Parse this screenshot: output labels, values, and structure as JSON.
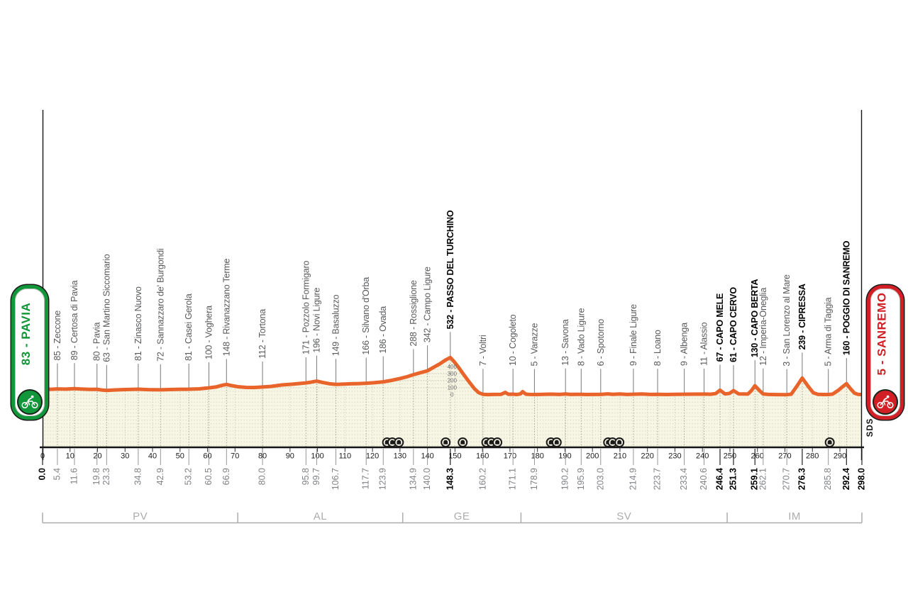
{
  "badges": {
    "start": {
      "label": "83 - PAVIA",
      "color": "#12963A"
    },
    "finish": {
      "label": "5 - SANREMO",
      "color": "#D21F26"
    }
  },
  "sds_logo": "SDS",
  "colors": {
    "profile_line": "#E8642B",
    "area_fill": "#F7F6E4",
    "area_dots": "#C8C8B3",
    "label_gray": "#58595B",
    "km_value_gray": "#808285",
    "province_gray": "#ACACAC",
    "axis_black": "#141414",
    "bold_black": "#000000"
  },
  "chart_data": {
    "type": "area",
    "x_unit": "km",
    "x_range": [
      0,
      298
    ],
    "x_ticks": [
      0,
      10,
      20,
      30,
      40,
      50,
      60,
      70,
      80,
      90,
      100,
      110,
      120,
      130,
      140,
      150,
      160,
      170,
      180,
      190,
      200,
      210,
      220,
      230,
      240,
      250,
      260,
      270,
      280,
      290
    ],
    "elevation_axis": {
      "at_km": 148.3,
      "labels": [
        400,
        300,
        200,
        100,
        0
      ]
    },
    "start": {
      "km": 0.0,
      "bold": true
    },
    "finish": {
      "km": 298.0,
      "bold": true
    },
    "towns": [
      {
        "km": 5.4,
        "elevation": 85,
        "name": "Zeccone",
        "bold": false
      },
      {
        "km": 11.6,
        "elevation": 89,
        "name": "Certosa di Pavia",
        "bold": false
      },
      {
        "km": 19.8,
        "elevation": 80,
        "name": "Pavia",
        "bold": false
      },
      {
        "km": 23.3,
        "elevation": 63,
        "name": "San Martino Siccomario",
        "bold": false
      },
      {
        "km": 34.8,
        "elevation": 81,
        "name": "Zinasco Nuovo",
        "bold": false
      },
      {
        "km": 42.9,
        "elevation": 72,
        "name": "Sannazzaro de' Burgondi",
        "bold": false
      },
      {
        "km": 53.2,
        "elevation": 81,
        "name": "Casei Gerola",
        "bold": false
      },
      {
        "km": 60.5,
        "elevation": 100,
        "name": "Voghera",
        "bold": false
      },
      {
        "km": 66.9,
        "elevation": 148,
        "name": "Rivanazzano Terme",
        "bold": false
      },
      {
        "km": 80.0,
        "elevation": 112,
        "name": "Tortona",
        "bold": false
      },
      {
        "km": 95.8,
        "elevation": 171,
        "name": "Pozzolo Formigaro",
        "bold": false
      },
      {
        "km": 99.7,
        "elevation": 196,
        "name": "Novi Ligure",
        "bold": false
      },
      {
        "km": 106.7,
        "elevation": 149,
        "name": "Basaluzzo",
        "bold": false
      },
      {
        "km": 117.7,
        "elevation": 166,
        "name": "Silvano d'Orba",
        "bold": false
      },
      {
        "km": 123.9,
        "elevation": 186,
        "name": "Ovada",
        "bold": false
      },
      {
        "km": 134.9,
        "elevation": 288,
        "name": "Rossiglione",
        "bold": false
      },
      {
        "km": 140.0,
        "elevation": 342,
        "name": "Campo Ligure",
        "bold": false
      },
      {
        "km": 148.3,
        "elevation": 532,
        "name": "PASSO DEL TURCHINO",
        "bold": true
      },
      {
        "km": 160.2,
        "elevation": 7,
        "name": "Voltri",
        "bold": false
      },
      {
        "km": 171.1,
        "elevation": 10,
        "name": "Cogoleto",
        "bold": false
      },
      {
        "km": 178.9,
        "elevation": 5,
        "name": "Varazze",
        "bold": false
      },
      {
        "km": 190.2,
        "elevation": 13,
        "name": "Savona",
        "bold": false
      },
      {
        "km": 195.9,
        "elevation": 8,
        "name": "Vado Ligure",
        "bold": false
      },
      {
        "km": 203.0,
        "elevation": 6,
        "name": "Spotorno",
        "bold": false
      },
      {
        "km": 214.9,
        "elevation": 9,
        "name": "Finale Ligure",
        "bold": false
      },
      {
        "km": 223.7,
        "elevation": 8,
        "name": "Loano",
        "bold": false
      },
      {
        "km": 233.4,
        "elevation": 9,
        "name": "Albenga",
        "bold": false
      },
      {
        "km": 240.6,
        "elevation": 11,
        "name": "Alassio",
        "bold": false
      },
      {
        "km": 246.4,
        "elevation": 67,
        "name": "CAPO MELE",
        "bold": true
      },
      {
        "km": 251.3,
        "elevation": 61,
        "name": "CAPO CERVO",
        "bold": true
      },
      {
        "km": 259.1,
        "elevation": 130,
        "name": "CAPO BERTA",
        "bold": true
      },
      {
        "km": 262.1,
        "elevation": 12,
        "name": "Imperia-Oneglia",
        "bold": false
      },
      {
        "km": 270.7,
        "elevation": 3,
        "name": "San Lorenzo al Mare",
        "bold": false
      },
      {
        "km": 276.3,
        "elevation": 239,
        "name": "CIPRESSA",
        "bold": true
      },
      {
        "km": 285.8,
        "elevation": 5,
        "name": "Arma di Taggia",
        "bold": false
      },
      {
        "km": 292.4,
        "elevation": 160,
        "name": "POGGIO DI SANREMO",
        "bold": true
      }
    ],
    "provinces": [
      {
        "code": "PV",
        "from_km": 0,
        "to_km": 71
      },
      {
        "code": "AL",
        "from_km": 71,
        "to_km": 131
      },
      {
        "code": "GE",
        "from_km": 131,
        "to_km": 174
      },
      {
        "code": "SV",
        "from_km": 174,
        "to_km": 249
      },
      {
        "code": "IM",
        "from_km": 249,
        "to_km": 298
      }
    ],
    "tunnel_groups": [
      [
        125.3,
        127.2,
        129.6
      ],
      [
        146.6
      ],
      [
        152.8
      ],
      [
        161.4,
        163.2,
        165.4
      ],
      [
        184.9,
        187.0
      ],
      [
        205.7,
        207.3,
        209.8
      ],
      [
        286.3
      ]
    ],
    "profile_points": [
      [
        0,
        83
      ],
      [
        3,
        80
      ],
      [
        5.4,
        85
      ],
      [
        8.5,
        82
      ],
      [
        11.6,
        89
      ],
      [
        14,
        84
      ],
      [
        17,
        78
      ],
      [
        19.8,
        80
      ],
      [
        21.5,
        70
      ],
      [
        23.3,
        63
      ],
      [
        26,
        70
      ],
      [
        30,
        76
      ],
      [
        34.8,
        81
      ],
      [
        38.5,
        75
      ],
      [
        42.9,
        72
      ],
      [
        46,
        76
      ],
      [
        50,
        80
      ],
      [
        53.2,
        81
      ],
      [
        57,
        86
      ],
      [
        60.5,
        100
      ],
      [
        63,
        112
      ],
      [
        65.5,
        138
      ],
      [
        66.9,
        148
      ],
      [
        68.5,
        134
      ],
      [
        71,
        116
      ],
      [
        74,
        106
      ],
      [
        77,
        105
      ],
      [
        80,
        112
      ],
      [
        83,
        120
      ],
      [
        87,
        141
      ],
      [
        91,
        153
      ],
      [
        95.8,
        171
      ],
      [
        97.6,
        181
      ],
      [
        99.7,
        196
      ],
      [
        102,
        176
      ],
      [
        104.5,
        158
      ],
      [
        106.7,
        149
      ],
      [
        109,
        153
      ],
      [
        112,
        158
      ],
      [
        115,
        161
      ],
      [
        117.7,
        166
      ],
      [
        120.5,
        173
      ],
      [
        123.9,
        186
      ],
      [
        127,
        207
      ],
      [
        130,
        233
      ],
      [
        132.5,
        258
      ],
      [
        134.9,
        288
      ],
      [
        137.5,
        316
      ],
      [
        140,
        342
      ],
      [
        142,
        388
      ],
      [
        144.5,
        442
      ],
      [
        146.5,
        495
      ],
      [
        148.3,
        532
      ],
      [
        149.6,
        478
      ],
      [
        151.2,
        398
      ],
      [
        153,
        298
      ],
      [
        155,
        192
      ],
      [
        157,
        92
      ],
      [
        158.6,
        32
      ],
      [
        160.2,
        7
      ],
      [
        162,
        4
      ],
      [
        164,
        6
      ],
      [
        166.8,
        8
      ],
      [
        168.3,
        35
      ],
      [
        169.4,
        9
      ],
      [
        171.1,
        10
      ],
      [
        172.4,
        5
      ],
      [
        173.8,
        13
      ],
      [
        174.6,
        45
      ],
      [
        175.8,
        10
      ],
      [
        177,
        6
      ],
      [
        178.9,
        5
      ],
      [
        182,
        7
      ],
      [
        185,
        10
      ],
      [
        188,
        6
      ],
      [
        190.2,
        13
      ],
      [
        192,
        6
      ],
      [
        194,
        7
      ],
      [
        195.9,
        8
      ],
      [
        198,
        5
      ],
      [
        200.5,
        6
      ],
      [
        203,
        6
      ],
      [
        205.5,
        14
      ],
      [
        207.5,
        8
      ],
      [
        210,
        12
      ],
      [
        212.5,
        6
      ],
      [
        214.9,
        9
      ],
      [
        218,
        12
      ],
      [
        221,
        6
      ],
      [
        223.7,
        8
      ],
      [
        227,
        5
      ],
      [
        230,
        8
      ],
      [
        233.4,
        9
      ],
      [
        236.5,
        10
      ],
      [
        240.6,
        11
      ],
      [
        243,
        9
      ],
      [
        244.8,
        18
      ],
      [
        246.4,
        67
      ],
      [
        248.2,
        14
      ],
      [
        249.8,
        20
      ],
      [
        251.3,
        61
      ],
      [
        253.2,
        14
      ],
      [
        256.5,
        11
      ],
      [
        257.8,
        60
      ],
      [
        259.1,
        130
      ],
      [
        260.8,
        60
      ],
      [
        262.1,
        12
      ],
      [
        264,
        6
      ],
      [
        267,
        4
      ],
      [
        270.7,
        3
      ],
      [
        272.3,
        10
      ],
      [
        274.3,
        120
      ],
      [
        276.3,
        239
      ],
      [
        278.3,
        130
      ],
      [
        280.3,
        30
      ],
      [
        282,
        8
      ],
      [
        284,
        5
      ],
      [
        285.8,
        5
      ],
      [
        287.3,
        10
      ],
      [
        289.3,
        62
      ],
      [
        290.8,
        110
      ],
      [
        292.4,
        160
      ],
      [
        293.8,
        90
      ],
      [
        295.3,
        25
      ],
      [
        296.5,
        8
      ],
      [
        298,
        5
      ]
    ]
  }
}
